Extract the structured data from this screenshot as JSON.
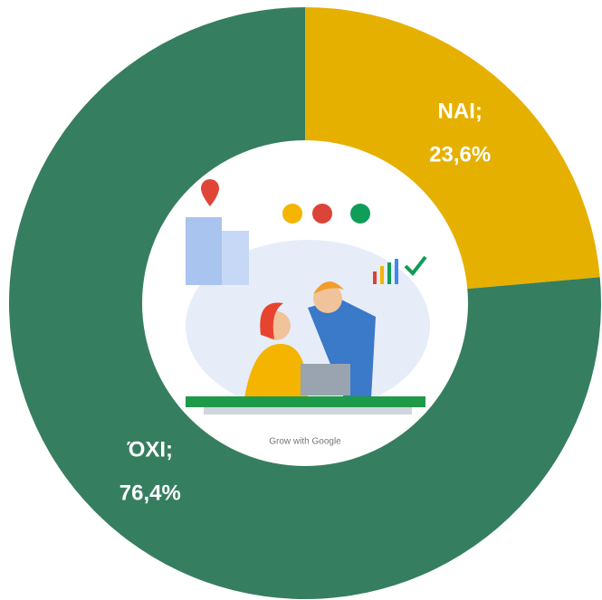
{
  "chart_data": {
    "type": "donut",
    "categories": [
      "NAI;",
      "ΌΧΙ;"
    ],
    "values": [
      23.6,
      76.4
    ],
    "value_labels": [
      "23,6%",
      "76,4%"
    ],
    "colors": [
      "#e6b000",
      "#367e60"
    ]
  },
  "illustration": {
    "caption": "Grow with Google"
  }
}
